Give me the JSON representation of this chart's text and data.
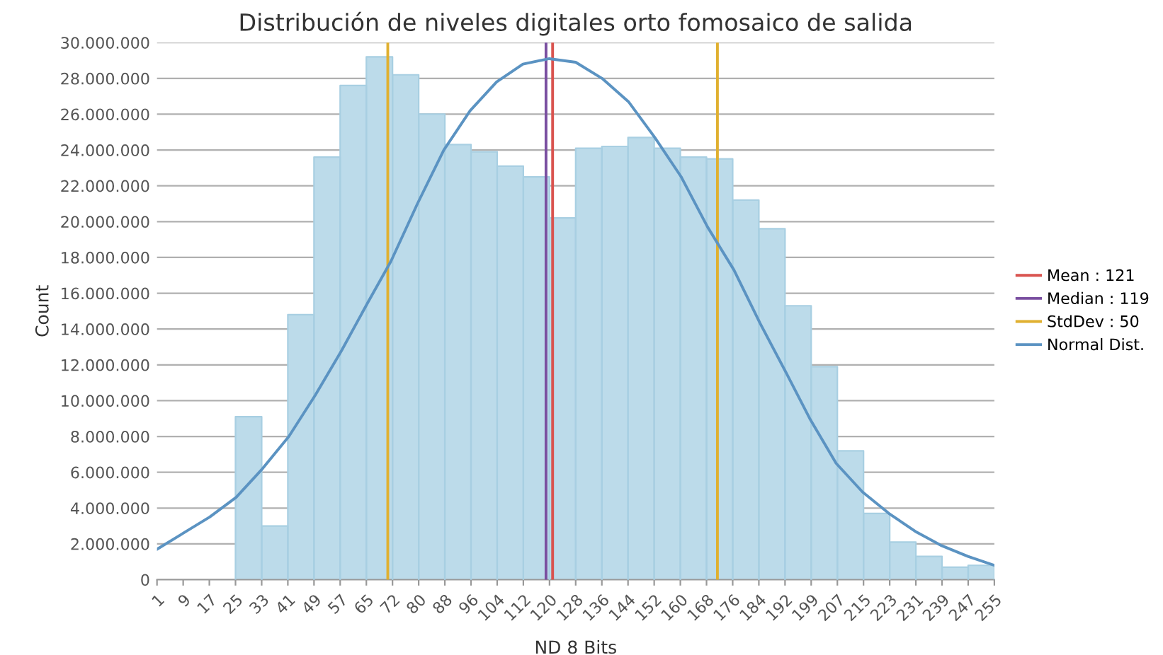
{
  "chart_data": {
    "type": "histogram",
    "title": "Distribución de niveles digitales orto fomosaico de salida",
    "xlabel": "ND 8 Bits",
    "ylabel": "Count",
    "bins": [
      1,
      8.9375,
      16.875,
      24.8125,
      32.75,
      40.6875,
      48.625,
      56.5625,
      64.5,
      72.4375,
      80.375,
      88.3125,
      96.25,
      104.1875,
      112.125,
      120.0625,
      128,
      135.9375,
      143.875,
      151.8125,
      159.75,
      167.6875,
      175.625,
      183.5625,
      191.5,
      199.4375,
      207.375,
      215.3125,
      223.25,
      231.1875,
      239.125,
      247.0625,
      255
    ],
    "values": [
      0,
      0,
      0,
      9100000,
      3000000,
      14800000,
      23600000,
      27600000,
      29200000,
      28200000,
      26000000,
      24300000,
      23900000,
      23100000,
      22500000,
      20200000,
      24100000,
      24200000,
      24700000,
      24100000,
      23600000,
      23500000,
      21200000,
      19600000,
      15300000,
      11900000,
      7200000,
      3700000,
      2100000,
      1300000,
      700000,
      800000
    ],
    "color": "#bcdbea",
    "series": [
      {
        "type": "line",
        "name": "Mean : 121",
        "color": "#d9534f",
        "x": [
          121,
          121
        ],
        "values": [
          0,
          30000000
        ]
      },
      {
        "type": "line",
        "name": "Median : 119",
        "color": "#7a4fa0",
        "x": [
          119,
          119
        ],
        "values": [
          0,
          30000000
        ]
      },
      {
        "type": "line",
        "name": "StdDev : 50",
        "color": "#e0b030",
        "x": [
          71,
          71,
          121,
          171,
          171
        ],
        "values": [
          0,
          30000000,
          null,
          30000000,
          0
        ]
      },
      {
        "type": "line",
        "name": "Normal Dist.",
        "color": "#5b93c2",
        "x": [
          1,
          9,
          17,
          25,
          33,
          41,
          49,
          57,
          65,
          72,
          80,
          88,
          96,
          104,
          112,
          120,
          128,
          136,
          144,
          152,
          160,
          168,
          176,
          184,
          192,
          199,
          207,
          215,
          223,
          231,
          239,
          247,
          255
        ],
        "values": [
          1700000,
          2600000,
          3500000,
          4600000,
          6200000,
          8000000,
          10300000,
          12800000,
          15500000,
          17800000,
          21000000,
          24000000,
          26200000,
          27800000,
          28800000,
          29100000,
          28900000,
          28000000,
          26700000,
          24700000,
          22500000,
          19700000,
          17300000,
          14300000,
          11500000,
          9000000,
          6500000,
          4900000,
          3700000,
          2700000,
          1900000,
          1300000,
          800000
        ]
      }
    ],
    "xlim": [
      1,
      255
    ],
    "xticks": [
      1,
      {
        "value": 8.9375,
        "label": "9"
      },
      {
        "value": 16.875,
        "label": "17"
      },
      {
        "value": 24.8125,
        "label": "25"
      },
      {
        "value": 32.75,
        "label": "33"
      },
      {
        "value": 40.6875,
        "label": "41"
      },
      {
        "value": 48.625,
        "label": "49"
      },
      {
        "value": 56.5625,
        "label": "57"
      },
      {
        "value": 64.5,
        "label": "65"
      },
      {
        "value": 72.4375,
        "label": "72"
      },
      {
        "value": 80.375,
        "label": "80"
      },
      {
        "value": 88.3125,
        "label": "88"
      },
      {
        "value": 96.25,
        "label": "96"
      },
      {
        "value": 104.1875,
        "label": "104"
      },
      {
        "value": 112.125,
        "label": "112"
      },
      {
        "value": 120.0625,
        "label": "120"
      },
      128,
      {
        "value": 135.9375,
        "label": "136"
      },
      {
        "value": 143.875,
        "label": "144"
      },
      {
        "value": 151.8125,
        "label": "152"
      },
      {
        "value": 159.75,
        "label": "160"
      },
      {
        "value": 167.6875,
        "label": "168"
      },
      {
        "value": 175.625,
        "label": "176"
      },
      {
        "value": 183.5625,
        "label": "184"
      },
      {
        "value": 191.5,
        "label": "192"
      },
      {
        "value": 199.4375,
        "label": "199"
      },
      {
        "value": 207.375,
        "label": "207"
      },
      {
        "value": 215.3125,
        "label": "215"
      },
      {
        "value": 223.25,
        "label": "223"
      },
      {
        "value": 231.1875,
        "label": "231"
      },
      {
        "value": 239.125,
        "label": "239"
      },
      {
        "value": 247.0625,
        "label": "247"
      },
      255
    ],
    "ylim": [
      0,
      30000000
    ],
    "yticks": [
      0,
      {
        "value": 2000000,
        "label": "2.000.000"
      },
      {
        "value": 4000000,
        "label": "4.000.000"
      },
      {
        "value": 6000000,
        "label": "6.000.000"
      },
      {
        "value": 8000000,
        "label": "8.000.000"
      },
      {
        "value": 10000000,
        "label": "10.000.000"
      },
      {
        "value": 12000000,
        "label": "12.000.000"
      },
      {
        "value": 14000000,
        "label": "14.000.000"
      },
      {
        "value": 16000000,
        "label": "16.000.000"
      },
      {
        "value": 18000000,
        "label": "18.000.000"
      },
      {
        "value": 20000000,
        "label": "20.000.000"
      },
      {
        "value": 22000000,
        "label": "22.000.000"
      },
      {
        "value": 24000000,
        "label": "24.000.000"
      },
      {
        "value": 26000000,
        "label": "26.000.000"
      },
      {
        "value": 28000000,
        "label": "28.000.000"
      },
      {
        "value": 30000000,
        "label": "30.000.000"
      }
    ],
    "grid": "y",
    "legend": "right"
  }
}
